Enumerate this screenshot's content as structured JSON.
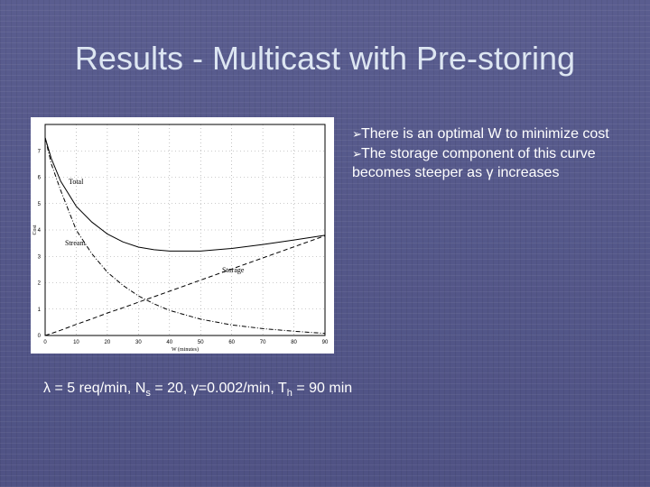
{
  "slide": {
    "title": "Results - Multicast with Pre-storing",
    "bullets": [
      "There is an optimal W to minimize cost",
      "The storage component of this curve becomes steeper as γ increases"
    ],
    "caption": {
      "lambda_sym": "λ",
      "lambda_text": " = 5 req/min, N",
      "ns_sub": "s",
      "ns_text": " = 20, ",
      "gamma_sym": "γ",
      "gamma_text": "=0.002/min, T",
      "th_sub": "h",
      "th_text": " = 90 min"
    }
  },
  "chart_data": {
    "type": "line",
    "xlabel": "W (minutes)",
    "ylabel": "Cost",
    "xlim": [
      0,
      90
    ],
    "ylim": [
      0,
      8
    ],
    "xticks": [
      "0",
      "10",
      "20",
      "30",
      "40",
      "50",
      "60",
      "70",
      "80",
      "90"
    ],
    "yticks": [
      "0",
      "1",
      "2",
      "3",
      "4",
      "5",
      "6",
      "7"
    ],
    "grid": true,
    "x": [
      0,
      2,
      5,
      10,
      15,
      20,
      25,
      30,
      35,
      40,
      50,
      60,
      70,
      80,
      90
    ],
    "series": [
      {
        "name": "Total",
        "style": "solid",
        "values": [
          7.5,
          6.7,
          5.85,
          4.9,
          4.3,
          3.85,
          3.55,
          3.35,
          3.25,
          3.2,
          3.2,
          3.3,
          3.45,
          3.62,
          3.8
        ]
      },
      {
        "name": "Stream",
        "style": "dashdot",
        "values": [
          7.5,
          6.5,
          5.5,
          4.0,
          3.1,
          2.4,
          1.9,
          1.5,
          1.2,
          0.95,
          0.62,
          0.4,
          0.26,
          0.16,
          0.08
        ]
      },
      {
        "name": "Storage",
        "style": "dashed",
        "values": [
          0,
          0.08,
          0.2,
          0.42,
          0.63,
          0.85,
          1.05,
          1.26,
          1.47,
          1.68,
          2.1,
          2.52,
          2.94,
          3.36,
          3.78
        ]
      }
    ],
    "series_labels": {
      "Total": "Total",
      "Stream": "Stream",
      "Storage": "Storage"
    }
  }
}
